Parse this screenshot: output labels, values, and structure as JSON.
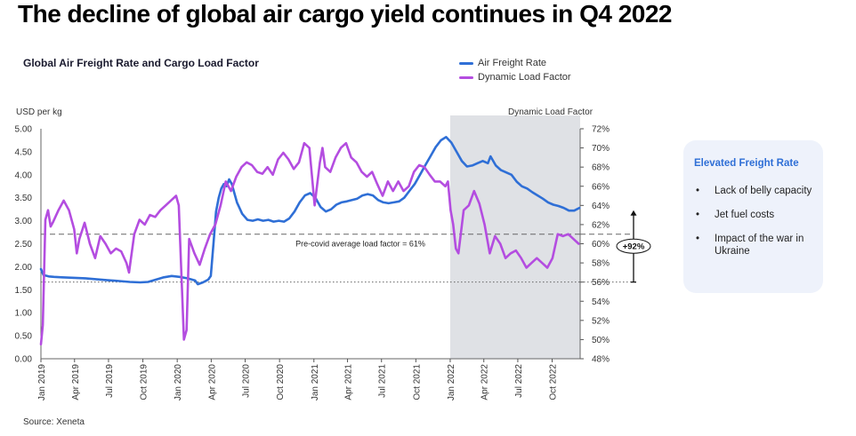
{
  "headline": "The decline of global air cargo yield continues in Q4 2022",
  "source": "Source: Xeneta",
  "callout": {
    "title": "Elevated Freight Rate",
    "bullets": [
      "Lack of belly capacity",
      "Jet fuel costs",
      "Impact of the war in Ukraine"
    ]
  },
  "chart_data": {
    "type": "line",
    "title": "Global Air Freight Rate and Cargo Load Factor",
    "ylabel_left": "USD per kg",
    "ylabel_right": "Dynamic Load Factor",
    "ylim_left": [
      0,
      5
    ],
    "ylim_right": [
      48,
      72
    ],
    "yticks_left": [
      "0.00",
      "0.50",
      "1.00",
      "1.50",
      "2.00",
      "2.50",
      "3.00",
      "3.50",
      "4.00",
      "4.50",
      "5.00"
    ],
    "yticks_right": [
      "48%",
      "50%",
      "52%",
      "54%",
      "56%",
      "58%",
      "60%",
      "62%",
      "64%",
      "66%",
      "68%",
      "70%",
      "72%"
    ],
    "x_range": [
      "2019-01-01",
      "2022-12-15"
    ],
    "xticks": [
      {
        "date": "2019-01-01",
        "label": "Jan 2019"
      },
      {
        "date": "2019-04-01",
        "label": "Apr 2019"
      },
      {
        "date": "2019-07-01",
        "label": "Jul 2019"
      },
      {
        "date": "2019-10-01",
        "label": "Oct 2019"
      },
      {
        "date": "2020-01-01",
        "label": "Jan 2020"
      },
      {
        "date": "2020-04-01",
        "label": "Apr 2020"
      },
      {
        "date": "2020-07-01",
        "label": "Jul 2020"
      },
      {
        "date": "2020-10-01",
        "label": "Oct 2020"
      },
      {
        "date": "2021-01-01",
        "label": "Jan 2021"
      },
      {
        "date": "2021-04-01",
        "label": "Apr 2021"
      },
      {
        "date": "2021-07-01",
        "label": "Jul 2021"
      },
      {
        "date": "2021-10-01",
        "label": "Oct 2021"
      },
      {
        "date": "2022-01-01",
        "label": "Jan 2022"
      },
      {
        "date": "2022-04-01",
        "label": "Apr 2022"
      },
      {
        "date": "2022-07-01",
        "label": "Jul 2022"
      },
      {
        "date": "2022-10-01",
        "label": "Oct 2022"
      }
    ],
    "shaded_region": {
      "from": "2022-01-01",
      "to": "2022-12-15"
    },
    "reference_lines": [
      {
        "axis": "right",
        "value": 61,
        "label": "Pre-covid average load factor = 61%",
        "style": "dashed"
      },
      {
        "axis": "right",
        "value": 56,
        "label": "",
        "style": "dotted"
      }
    ],
    "change_annotation": {
      "from": 56,
      "to": 63.5,
      "axis": "right",
      "label": "+92%"
    },
    "grid": false,
    "legend_position": "top-right",
    "series": [
      {
        "name": "Air Freight Rate",
        "axis": "left",
        "color": "#2f6fd6",
        "points": [
          [
            "2019-01-01",
            1.95
          ],
          [
            "2019-01-08",
            1.82
          ],
          [
            "2019-01-22",
            1.79
          ],
          [
            "2019-02-05",
            1.78
          ],
          [
            "2019-02-26",
            1.77
          ],
          [
            "2019-03-26",
            1.76
          ],
          [
            "2019-04-30",
            1.75
          ],
          [
            "2019-05-28",
            1.73
          ],
          [
            "2019-06-25",
            1.71
          ],
          [
            "2019-07-30",
            1.69
          ],
          [
            "2019-08-27",
            1.67
          ],
          [
            "2019-09-24",
            1.66
          ],
          [
            "2019-10-15",
            1.67
          ],
          [
            "2019-11-05",
            1.72
          ],
          [
            "2019-11-26",
            1.77
          ],
          [
            "2019-12-17",
            1.8
          ],
          [
            "2020-01-07",
            1.78
          ],
          [
            "2020-01-28",
            1.75
          ],
          [
            "2020-02-18",
            1.7
          ],
          [
            "2020-02-25",
            1.62
          ],
          [
            "2020-03-10",
            1.66
          ],
          [
            "2020-03-24",
            1.72
          ],
          [
            "2020-03-31",
            1.8
          ],
          [
            "2020-04-07",
            2.5
          ],
          [
            "2020-04-14",
            3.2
          ],
          [
            "2020-04-21",
            3.5
          ],
          [
            "2020-04-28",
            3.7
          ],
          [
            "2020-05-05",
            3.8
          ],
          [
            "2020-05-12",
            3.75
          ],
          [
            "2020-05-19",
            3.9
          ],
          [
            "2020-05-26",
            3.8
          ],
          [
            "2020-06-09",
            3.4
          ],
          [
            "2020-06-23",
            3.15
          ],
          [
            "2020-07-07",
            3.02
          ],
          [
            "2020-07-21",
            3.0
          ],
          [
            "2020-08-04",
            3.03
          ],
          [
            "2020-08-18",
            3.0
          ],
          [
            "2020-09-01",
            3.02
          ],
          [
            "2020-09-15",
            2.98
          ],
          [
            "2020-09-29",
            3.0
          ],
          [
            "2020-10-13",
            2.98
          ],
          [
            "2020-10-27",
            3.05
          ],
          [
            "2020-11-10",
            3.2
          ],
          [
            "2020-11-24",
            3.4
          ],
          [
            "2020-12-08",
            3.55
          ],
          [
            "2020-12-22",
            3.6
          ],
          [
            "2021-01-05",
            3.5
          ],
          [
            "2021-01-19",
            3.3
          ],
          [
            "2021-02-02",
            3.2
          ],
          [
            "2021-02-16",
            3.25
          ],
          [
            "2021-03-02",
            3.35
          ],
          [
            "2021-03-16",
            3.4
          ],
          [
            "2021-03-30",
            3.42
          ],
          [
            "2021-04-13",
            3.45
          ],
          [
            "2021-04-27",
            3.48
          ],
          [
            "2021-05-11",
            3.55
          ],
          [
            "2021-05-25",
            3.58
          ],
          [
            "2021-06-08",
            3.55
          ],
          [
            "2021-06-22",
            3.45
          ],
          [
            "2021-07-06",
            3.4
          ],
          [
            "2021-07-20",
            3.38
          ],
          [
            "2021-08-03",
            3.4
          ],
          [
            "2021-08-17",
            3.42
          ],
          [
            "2021-08-31",
            3.5
          ],
          [
            "2021-09-14",
            3.65
          ],
          [
            "2021-09-28",
            3.8
          ],
          [
            "2021-10-12",
            4.0
          ],
          [
            "2021-10-26",
            4.2
          ],
          [
            "2021-11-09",
            4.4
          ],
          [
            "2021-11-23",
            4.6
          ],
          [
            "2021-12-07",
            4.75
          ],
          [
            "2021-12-21",
            4.82
          ],
          [
            "2022-01-04",
            4.7
          ],
          [
            "2022-01-18",
            4.5
          ],
          [
            "2022-02-01",
            4.3
          ],
          [
            "2022-02-15",
            4.18
          ],
          [
            "2022-03-01",
            4.2
          ],
          [
            "2022-03-15",
            4.25
          ],
          [
            "2022-03-29",
            4.3
          ],
          [
            "2022-04-12",
            4.25
          ],
          [
            "2022-04-19",
            4.4
          ],
          [
            "2022-05-03",
            4.2
          ],
          [
            "2022-05-17",
            4.1
          ],
          [
            "2022-05-31",
            4.05
          ],
          [
            "2022-06-14",
            4.0
          ],
          [
            "2022-06-28",
            3.85
          ],
          [
            "2022-07-12",
            3.75
          ],
          [
            "2022-07-26",
            3.7
          ],
          [
            "2022-08-09",
            3.62
          ],
          [
            "2022-08-23",
            3.55
          ],
          [
            "2022-09-06",
            3.48
          ],
          [
            "2022-09-20",
            3.4
          ],
          [
            "2022-10-04",
            3.35
          ],
          [
            "2022-10-18",
            3.32
          ],
          [
            "2022-11-01",
            3.28
          ],
          [
            "2022-11-15",
            3.22
          ],
          [
            "2022-11-29",
            3.22
          ],
          [
            "2022-12-13",
            3.28
          ]
        ]
      },
      {
        "name": "Dynamic Load Factor",
        "axis": "right",
        "color": "#b44de0",
        "points": [
          [
            "2019-01-01",
            49.5
          ],
          [
            "2019-01-06",
            51.5
          ],
          [
            "2019-01-13",
            62.5
          ],
          [
            "2019-01-20",
            63.5
          ],
          [
            "2019-01-27",
            61.8
          ],
          [
            "2019-02-03",
            62.3
          ],
          [
            "2019-02-17",
            63.5
          ],
          [
            "2019-03-03",
            64.5
          ],
          [
            "2019-03-17",
            63.5
          ],
          [
            "2019-03-31",
            61.5
          ],
          [
            "2019-04-07",
            59.0
          ],
          [
            "2019-04-14",
            60.5
          ],
          [
            "2019-04-28",
            62.2
          ],
          [
            "2019-05-12",
            60.0
          ],
          [
            "2019-05-26",
            58.5
          ],
          [
            "2019-06-09",
            60.8
          ],
          [
            "2019-06-23",
            60.0
          ],
          [
            "2019-07-07",
            59.0
          ],
          [
            "2019-07-21",
            59.5
          ],
          [
            "2019-08-04",
            59.2
          ],
          [
            "2019-08-18",
            58.0
          ],
          [
            "2019-08-25",
            57.0
          ],
          [
            "2019-09-08",
            61.0
          ],
          [
            "2019-09-22",
            62.5
          ],
          [
            "2019-10-06",
            62.0
          ],
          [
            "2019-10-20",
            63.0
          ],
          [
            "2019-11-03",
            62.8
          ],
          [
            "2019-11-17",
            63.5
          ],
          [
            "2019-12-01",
            64.0
          ],
          [
            "2019-12-15",
            64.5
          ],
          [
            "2019-12-29",
            65.0
          ],
          [
            "2020-01-05",
            64.0
          ],
          [
            "2020-01-19",
            50.0
          ],
          [
            "2020-01-26",
            51.0
          ],
          [
            "2020-02-02",
            60.5
          ],
          [
            "2020-02-16",
            59.0
          ],
          [
            "2020-03-01",
            57.8
          ],
          [
            "2020-03-15",
            59.5
          ],
          [
            "2020-03-29",
            61.0
          ],
          [
            "2020-04-12",
            62.0
          ],
          [
            "2020-04-26",
            64.0
          ],
          [
            "2020-05-10",
            66.5
          ],
          [
            "2020-05-24",
            65.5
          ],
          [
            "2020-06-07",
            67.0
          ],
          [
            "2020-06-21",
            68.0
          ],
          [
            "2020-07-05",
            68.5
          ],
          [
            "2020-07-19",
            68.2
          ],
          [
            "2020-08-02",
            67.5
          ],
          [
            "2020-08-16",
            67.3
          ],
          [
            "2020-08-30",
            68.0
          ],
          [
            "2020-09-13",
            67.2
          ],
          [
            "2020-09-27",
            68.8
          ],
          [
            "2020-10-11",
            69.5
          ],
          [
            "2020-10-25",
            68.8
          ],
          [
            "2020-11-08",
            67.8
          ],
          [
            "2020-11-22",
            68.5
          ],
          [
            "2020-12-06",
            70.5
          ],
          [
            "2020-12-20",
            70.0
          ],
          [
            "2021-01-03",
            64.0
          ],
          [
            "2021-01-17",
            68.5
          ],
          [
            "2021-01-24",
            70.0
          ],
          [
            "2021-01-31",
            68.0
          ],
          [
            "2021-02-14",
            67.5
          ],
          [
            "2021-02-28",
            69.0
          ],
          [
            "2021-03-14",
            70.0
          ],
          [
            "2021-03-28",
            70.5
          ],
          [
            "2021-04-11",
            69.0
          ],
          [
            "2021-04-25",
            68.5
          ],
          [
            "2021-05-09",
            67.5
          ],
          [
            "2021-05-23",
            67.0
          ],
          [
            "2021-06-06",
            67.5
          ],
          [
            "2021-06-20",
            66.2
          ],
          [
            "2021-07-04",
            65.0
          ],
          [
            "2021-07-18",
            66.5
          ],
          [
            "2021-08-01",
            65.5
          ],
          [
            "2021-08-15",
            66.5
          ],
          [
            "2021-08-29",
            65.5
          ],
          [
            "2021-09-12",
            66.0
          ],
          [
            "2021-09-26",
            67.5
          ],
          [
            "2021-10-10",
            68.2
          ],
          [
            "2021-10-24",
            68.0
          ],
          [
            "2021-11-07",
            67.2
          ],
          [
            "2021-11-21",
            66.5
          ],
          [
            "2021-12-05",
            66.5
          ],
          [
            "2021-12-19",
            66.0
          ],
          [
            "2021-12-26",
            66.5
          ],
          [
            "2022-01-02",
            63.5
          ],
          [
            "2022-01-09",
            62.0
          ],
          [
            "2022-01-16",
            59.5
          ],
          [
            "2022-01-23",
            59.0
          ],
          [
            "2022-02-06",
            63.5
          ],
          [
            "2022-02-20",
            64.0
          ],
          [
            "2022-03-06",
            65.5
          ],
          [
            "2022-03-20",
            64.2
          ],
          [
            "2022-04-03",
            62.0
          ],
          [
            "2022-04-17",
            59.0
          ],
          [
            "2022-05-01",
            60.8
          ],
          [
            "2022-05-15",
            60.0
          ],
          [
            "2022-05-29",
            58.5
          ],
          [
            "2022-06-12",
            59.0
          ],
          [
            "2022-06-26",
            59.3
          ],
          [
            "2022-07-10",
            58.5
          ],
          [
            "2022-07-24",
            57.5
          ],
          [
            "2022-08-07",
            58.0
          ],
          [
            "2022-08-21",
            58.5
          ],
          [
            "2022-09-04",
            58.0
          ],
          [
            "2022-09-18",
            57.5
          ],
          [
            "2022-10-02",
            58.5
          ],
          [
            "2022-10-16",
            61.0
          ],
          [
            "2022-10-30",
            60.8
          ],
          [
            "2022-11-13",
            61.0
          ],
          [
            "2022-11-27",
            60.5
          ],
          [
            "2022-12-11",
            60.0
          ]
        ]
      }
    ]
  }
}
